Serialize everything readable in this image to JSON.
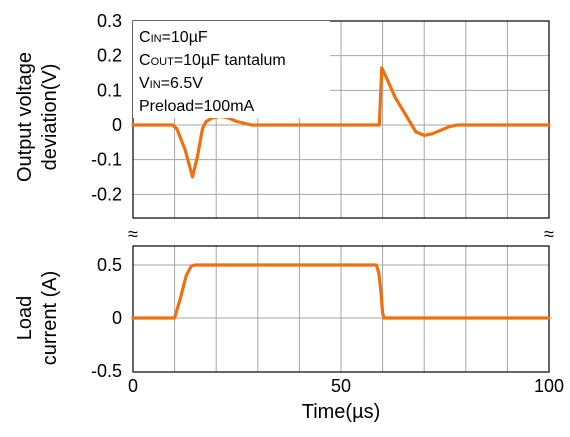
{
  "chart_data": [
    {
      "type": "line",
      "panel": "output-voltage",
      "ylabel_line1": "Output voltage",
      "ylabel_line2": "deviation(V)",
      "ylim": [
        -0.25,
        0.3
      ],
      "yticks": [
        "0.3",
        "0.2",
        "0.1",
        "0",
        "-0.1",
        "-0.2"
      ],
      "ytick_values": [
        0.3,
        0.2,
        0.1,
        0,
        -0.1,
        -0.2
      ],
      "xlim": [
        0,
        100
      ],
      "grid": true,
      "series": [
        {
          "color": "#f07010",
          "x": [
            0,
            9.5,
            10.5,
            12.5,
            14.3,
            15.5,
            16.7,
            17.6,
            19,
            21,
            23,
            25,
            27,
            28.5,
            30,
            40,
            50,
            58,
            59.2,
            59.8,
            60.8,
            63,
            66,
            68,
            70,
            72,
            74,
            76,
            78,
            85,
            100
          ],
          "y": [
            0,
            0,
            -0.01,
            -0.07,
            -0.15,
            -0.09,
            -0.01,
            0.01,
            0.02,
            0.025,
            0.02,
            0.01,
            0.004,
            0,
            0,
            0,
            0,
            0,
            0.0,
            0.165,
            0.14,
            0.08,
            0.02,
            -0.02,
            -0.03,
            -0.025,
            -0.015,
            -0.005,
            0,
            0,
            0
          ]
        }
      ]
    },
    {
      "type": "line",
      "panel": "load-current",
      "ylabel_line1": "Load",
      "ylabel_line2": "current (A)",
      "ylim": [
        -0.5,
        0.6
      ],
      "yticks": [
        "0.5",
        "0",
        "-0.5"
      ],
      "ytick_values": [
        0.5,
        0,
        -0.5
      ],
      "xlim": [
        0,
        100
      ],
      "xticks": [
        "0",
        "50",
        "100"
      ],
      "xtick_values": [
        0,
        50,
        100
      ],
      "xlabel": "Time(µs)",
      "grid": true,
      "series": [
        {
          "color": "#f07010",
          "x": [
            0,
            10,
            11.5,
            12.8,
            14,
            15,
            40,
            58.5,
            59.1,
            59.6,
            60,
            60.3,
            70,
            100
          ],
          "y": [
            0,
            0,
            0.2,
            0.4,
            0.49,
            0.5,
            0.5,
            0.5,
            0.42,
            0.25,
            0.05,
            0,
            0,
            0
          ]
        }
      ]
    }
  ],
  "annotation": {
    "cin_main": "C",
    "cin_sub": "IN",
    "cin_value": "=10µF",
    "cout_main": "C",
    "cout_sub": "OUT",
    "cout_value": "=10µF tantalum",
    "vin_main": "V",
    "vin_sub": "IN",
    "vin_value": "=6.5V",
    "preload": "Preload=100mA"
  },
  "break_symbol": "≈"
}
